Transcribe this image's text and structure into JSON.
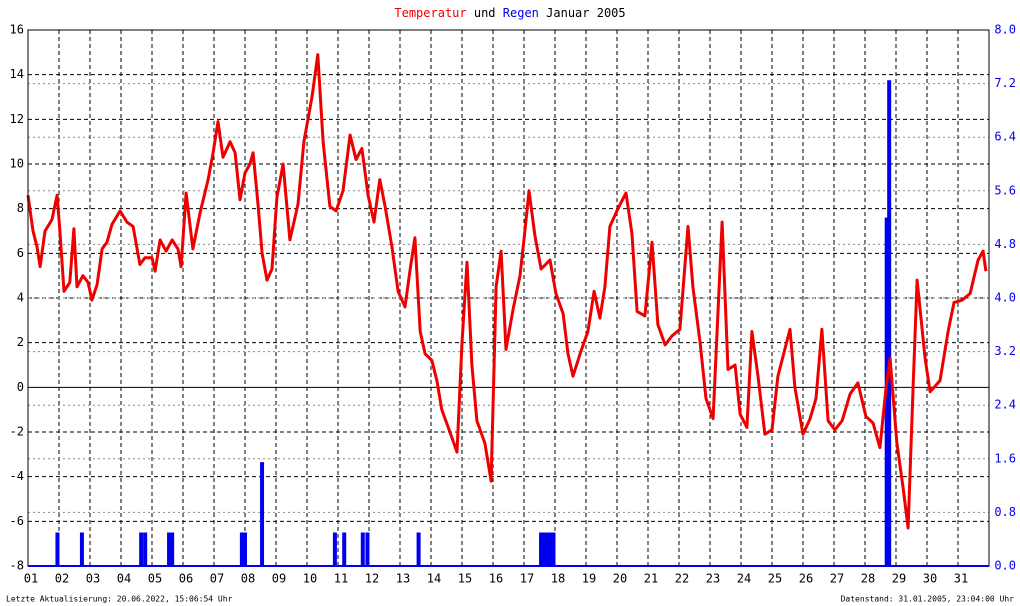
{
  "chart_data": {
    "type": "line",
    "title": [
      "Temperatur",
      "und",
      "Regen",
      "Januar 2005"
    ],
    "annotations": [
      "Letzte Aktualisierung: 20.06.2022, 15:06:54 Uhr",
      "Datenstand: 31.01.2005, 23:04:00 Uhr"
    ],
    "xlim": [
      1,
      32
    ],
    "xticks": [
      {
        "value": 1,
        "label": "01"
      },
      {
        "value": 2,
        "label": "02"
      },
      {
        "value": 3,
        "label": "03"
      },
      {
        "value": 4,
        "label": "04"
      },
      {
        "value": 5,
        "label": "05"
      },
      {
        "value": 6,
        "label": "06"
      },
      {
        "value": 7,
        "label": "07"
      },
      {
        "value": 8,
        "label": "08"
      },
      {
        "value": 9,
        "label": "09"
      },
      10,
      11,
      12,
      13,
      14,
      15,
      16,
      17,
      18,
      19,
      20,
      21,
      22,
      23,
      24,
      25,
      26,
      27,
      28,
      29,
      30,
      31
    ],
    "ylim": [
      -8,
      16
    ],
    "yticks": [
      -8,
      -6,
      -4,
      -2,
      0,
      2,
      4,
      6,
      8,
      10,
      12,
      14,
      16
    ],
    "y2lim": [
      0,
      8
    ],
    "y2ticks": [
      {
        "value": 0,
        "label": "0.0"
      },
      0.8,
      1.6,
      2.4,
      3.2,
      {
        "value": 4,
        "label": "4.0"
      },
      4.8,
      5.6,
      6.4,
      7.2,
      {
        "value": 8,
        "label": "8.0"
      }
    ],
    "grid": true,
    "series": [
      {
        "name": "Temperatur",
        "color": "#ee0000",
        "x": [
          1.0,
          1.16,
          1.29,
          1.39,
          1.55,
          1.77,
          1.94,
          2.03,
          2.16,
          2.35,
          2.48,
          2.58,
          2.77,
          2.94,
          3.06,
          3.23,
          3.39,
          3.55,
          3.71,
          3.97,
          4.19,
          4.39,
          4.61,
          4.77,
          5.0,
          5.1,
          5.26,
          5.45,
          5.65,
          5.84,
          5.94,
          6.1,
          6.32,
          6.55,
          6.81,
          6.97,
          7.13,
          7.29,
          7.52,
          7.68,
          7.84,
          8.0,
          8.16,
          8.26,
          8.42,
          8.55,
          8.71,
          8.87,
          9.03,
          9.23,
          9.45,
          9.71,
          9.9,
          10.16,
          10.35,
          10.52,
          10.74,
          10.94,
          11.16,
          11.39,
          11.58,
          11.77,
          11.97,
          12.16,
          12.35,
          12.52,
          12.74,
          12.94,
          13.16,
          13.32,
          13.48,
          13.65,
          13.81,
          14.03,
          14.19,
          14.35,
          14.61,
          14.84,
          15.0,
          15.16,
          15.32,
          15.48,
          15.74,
          15.94,
          16.1,
          16.26,
          16.42,
          16.65,
          16.87,
          17.03,
          17.16,
          17.35,
          17.55,
          17.84,
          18.03,
          18.26,
          18.42,
          18.58,
          18.81,
          19.06,
          19.26,
          19.45,
          19.61,
          19.77,
          20.03,
          20.29,
          20.48,
          20.65,
          20.9,
          21.13,
          21.32,
          21.55,
          21.77,
          22.03,
          22.29,
          22.45,
          22.68,
          22.87,
          23.1,
          23.39,
          23.58,
          23.81,
          23.97,
          24.19,
          24.35,
          24.55,
          24.77,
          25.0,
          25.19,
          25.58,
          25.74,
          26.0,
          26.23,
          26.42,
          26.61,
          26.81,
          27.03,
          27.26,
          27.52,
          27.77,
          28.03,
          28.26,
          28.48,
          28.68,
          28.81,
          29.03,
          29.23,
          29.39,
          29.55,
          29.68,
          29.94,
          30.1,
          30.42,
          30.68,
          30.87,
          31.13,
          31.39,
          31.65,
          31.81,
          31.9
        ],
        "values": [
          8.6,
          7,
          6.3,
          5.4,
          7,
          7.5,
          8.6,
          7,
          4.3,
          4.7,
          7.1,
          4.5,
          5,
          4.7,
          3.9,
          4.6,
          6.2,
          6.5,
          7.3,
          7.9,
          7.4,
          7.2,
          5.5,
          5.8,
          5.8,
          5.2,
          6.6,
          6.1,
          6.6,
          6.2,
          5.4,
          8.7,
          6.2,
          7.8,
          9.3,
          10.5,
          11.9,
          10.3,
          11,
          10.5,
          8.4,
          9.6,
          10,
          10.5,
          8.2,
          6,
          4.8,
          5.3,
          8.5,
          10,
          6.6,
          8.2,
          11,
          13,
          14.9,
          11,
          8.1,
          7.9,
          8.8,
          11.3,
          10.2,
          10.7,
          8.6,
          7.4,
          9.3,
          8.1,
          6.3,
          4.3,
          3.6,
          5.2,
          6.7,
          2.5,
          1.5,
          1.2,
          0.3,
          -1,
          -2,
          -2.9,
          2,
          5.6,
          1,
          -1.5,
          -2.5,
          -4.2,
          4.5,
          6.1,
          1.7,
          3.5,
          5,
          7,
          8.8,
          6.8,
          5.3,
          5.7,
          4.2,
          3.3,
          1.5,
          0.5,
          1.5,
          2.5,
          4.3,
          3.1,
          4.5,
          7.2,
          8,
          8.7,
          6.9,
          3.4,
          3.2,
          6.5,
          2.8,
          1.9,
          2.3,
          2.6,
          7.2,
          4.5,
          2,
          -0.5,
          -1.4,
          7.4,
          0.8,
          1,
          -1.2,
          -1.8,
          2.5,
          0.5,
          -2.1,
          -1.9,
          0.5,
          2.6,
          0,
          -2.1,
          -1.4,
          -0.5,
          2.6,
          -1.5,
          -1.9,
          -1.5,
          -0.3,
          0.2,
          -1.3,
          -1.6,
          -2.7,
          0,
          1.3,
          -2.5,
          -4.5,
          -6.3,
          0,
          4.8,
          1.3,
          -0.2,
          0.3,
          2.5,
          3.8,
          3.9,
          4.2,
          5.7,
          6.1,
          5.2
        ]
      },
      {
        "name": "Regen",
        "color": "#0000ee",
        "type": "bar",
        "axis": "y2",
        "x": [
          1.95,
          2.74,
          4.65,
          4.78,
          5.55,
          5.65,
          7.9,
          8.0,
          8.55,
          10.9,
          11.2,
          11.8,
          11.95,
          13.6,
          17.55,
          17.65,
          17.75,
          17.85,
          17.95,
          28.7,
          28.78
        ],
        "values": [
          0.5,
          0.5,
          0.5,
          0.5,
          0.5,
          0.5,
          0.5,
          0.5,
          1.55,
          0.5,
          0.5,
          0.5,
          0.5,
          0.5,
          0.5,
          0.5,
          0.5,
          0.5,
          0.5,
          5.2,
          7.25
        ]
      }
    ]
  }
}
